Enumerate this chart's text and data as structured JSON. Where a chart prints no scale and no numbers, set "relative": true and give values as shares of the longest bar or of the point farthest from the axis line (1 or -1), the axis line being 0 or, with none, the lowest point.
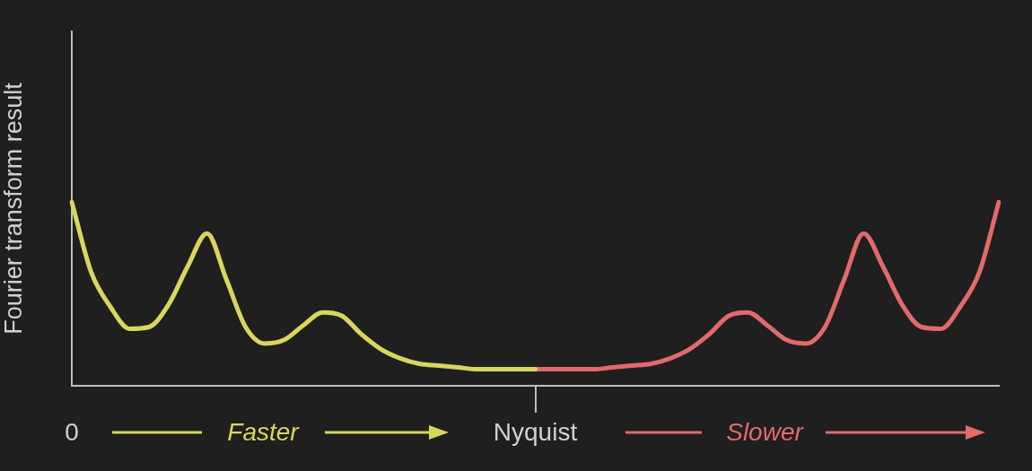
{
  "chart_data": {
    "type": "line",
    "ylabel": "Fourier transform result",
    "relative": true,
    "grid": false,
    "legend": false,
    "marker": "none",
    "line_style": "solid",
    "categories": [
      "0",
      null,
      null,
      null,
      null,
      null,
      null,
      null,
      null,
      null,
      null,
      null,
      null,
      null,
      null,
      null,
      null,
      null,
      null,
      null,
      null,
      null,
      null,
      null,
      "Nyquist",
      null,
      null,
      null,
      null,
      null,
      null,
      null,
      null,
      null,
      null,
      null,
      null,
      null,
      null,
      null,
      null,
      null,
      null,
      null,
      null,
      null,
      null,
      null,
      null
    ],
    "annotations": [
      "Faster",
      "Slower"
    ],
    "series": [
      {
        "color": "#d9d65c",
        "values": [
          1,
          0.62,
          0.43,
          0.31,
          0.32,
          0.44,
          0.65,
          0.83,
          0.58,
          0.32,
          0.23,
          0.25,
          0.33,
          0.4,
          0.38,
          0.28,
          0.2,
          0.15,
          0.12,
          0.11,
          0.1,
          0.09,
          0.09,
          0.09,
          0.09,
          null,
          null,
          null,
          null,
          null,
          null,
          null,
          null,
          null,
          null,
          null,
          null,
          null,
          null,
          null,
          null,
          null,
          null,
          null,
          null,
          null,
          null,
          null,
          null
        ]
      },
      {
        "color": "#e26a6a",
        "values": [
          null,
          null,
          null,
          null,
          null,
          null,
          null,
          null,
          null,
          null,
          null,
          null,
          null,
          null,
          null,
          null,
          null,
          null,
          null,
          null,
          null,
          null,
          null,
          null,
          0.09,
          0.09,
          0.09,
          0.09,
          0.1,
          0.11,
          0.12,
          0.15,
          0.2,
          0.28,
          0.38,
          0.4,
          0.33,
          0.25,
          0.23,
          0.32,
          0.58,
          0.83,
          0.65,
          0.44,
          0.32,
          0.31,
          0.43,
          0.62,
          1
        ]
      }
    ]
  }
}
